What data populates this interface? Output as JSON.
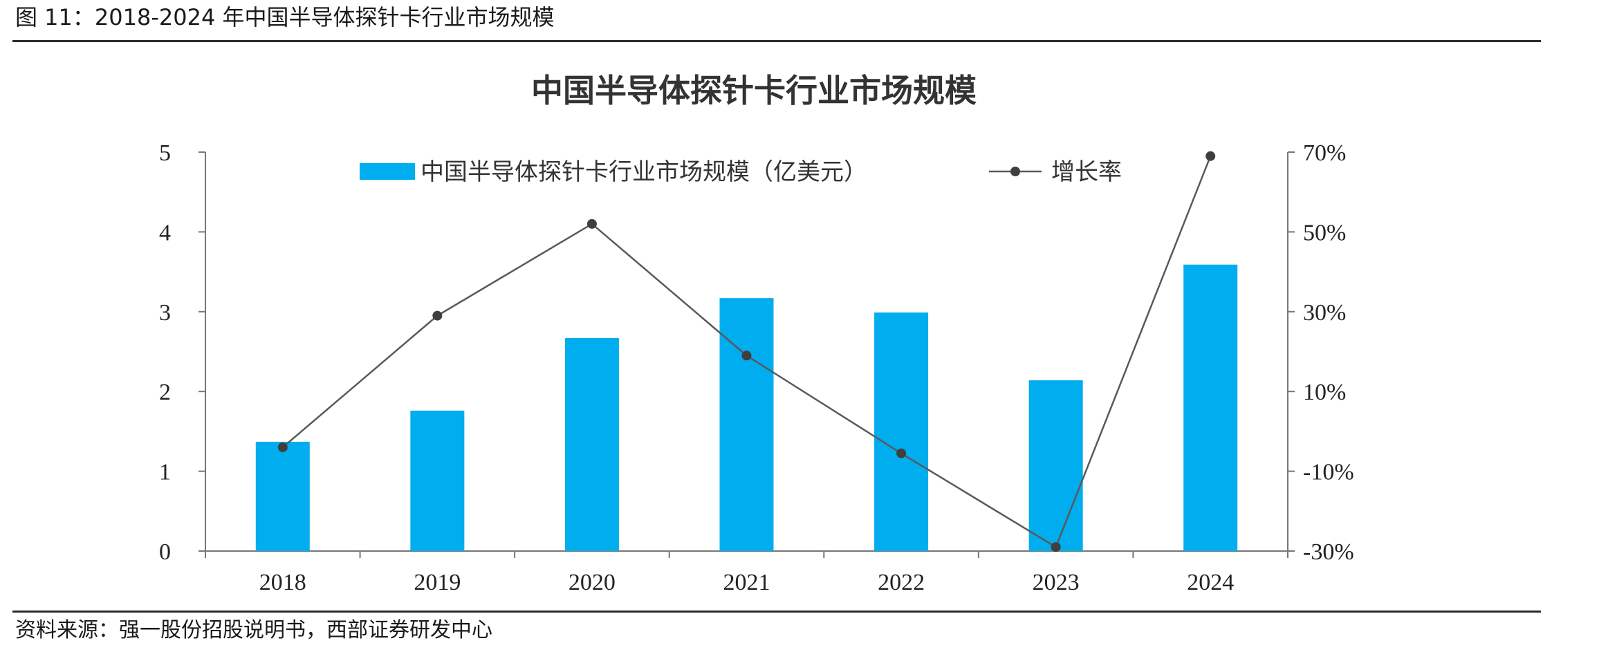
{
  "figure": {
    "caption": "图 11：2018-2024 年中国半导体探针卡行业市场规模",
    "source": "资料来源：强一股份招股说明书，西部证券研发中心"
  },
  "chart_data": {
    "type": "bar",
    "title": "中国半导体探针卡行业市场规模",
    "categories": [
      "2018",
      "2019",
      "2020",
      "2021",
      "2022",
      "2023",
      "2024"
    ],
    "series": [
      {
        "name": "中国半导体探针卡行业市场规模（亿美元）",
        "type": "bar",
        "axis": "left",
        "color": "#00ADEE",
        "values": [
          1.37,
          1.76,
          2.67,
          3.17,
          2.99,
          2.14,
          3.59
        ]
      },
      {
        "name": "增长率",
        "type": "line",
        "axis": "right",
        "color": "#595959",
        "values": [
          -4.0,
          29.0,
          52.0,
          19.0,
          -5.5,
          -29.0,
          69.0
        ]
      }
    ],
    "y_left": {
      "min": 0,
      "max": 5,
      "ticks": [
        "0",
        "1",
        "2",
        "3",
        "4",
        "5"
      ]
    },
    "y_right": {
      "min": -30,
      "max": 70,
      "unit": "%",
      "ticks": [
        "-30%",
        "-10%",
        "10%",
        "30%",
        "50%",
        "70%"
      ]
    },
    "grid": false,
    "legend_position": "top"
  }
}
